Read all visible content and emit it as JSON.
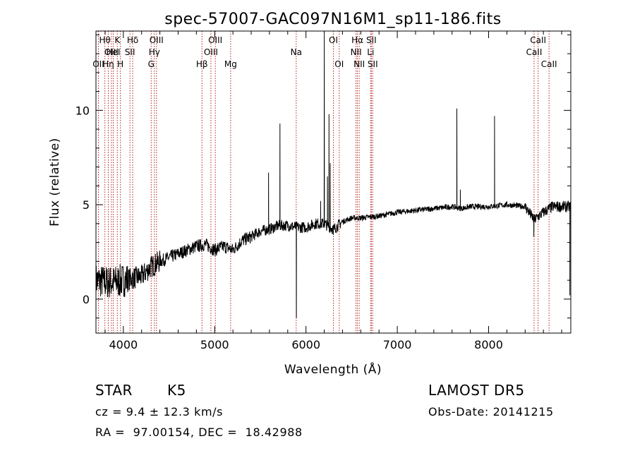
{
  "chart_data": {
    "type": "line",
    "title": "spec-57007-GAC097N16M1_sp11-186.fits",
    "xlabel": "Wavelength (Å)",
    "ylabel": "Flux (relative)",
    "xlim": [
      3700,
      8900
    ],
    "ylim": [
      -1.8,
      14.2
    ],
    "xticks": [
      4000,
      5000,
      6000,
      7000,
      8000
    ],
    "yticks": [
      0,
      5,
      10
    ],
    "grid": false,
    "line_color": "#000000",
    "marker_color": "#b22222",
    "lines": [
      {
        "label": "OII",
        "x": 3727,
        "row": 2
      },
      {
        "label": "Hθ",
        "x": 3798,
        "row": 0
      },
      {
        "label": "Hη",
        "x": 3835,
        "row": 2
      },
      {
        "label": "OIII",
        "x": 3869,
        "row": 1
      },
      {
        "label": "K",
        "x": 3934,
        "row": 0
      },
      {
        "label": "HeI",
        "x": 3889,
        "row": 1
      },
      {
        "label": "H",
        "x": 3968,
        "row": 2
      },
      {
        "label": "SII",
        "x": 4072,
        "row": 1
      },
      {
        "label": "Hδ",
        "x": 4102,
        "row": 0
      },
      {
        "label": "G",
        "x": 4305,
        "row": 2
      },
      {
        "label": "Hγ",
        "x": 4340,
        "row": 1
      },
      {
        "label": "OIII",
        "x": 4363,
        "row": 0
      },
      {
        "label": "Hβ",
        "x": 4861,
        "row": 2
      },
      {
        "label": "OIII",
        "x": 4959,
        "row": 1
      },
      {
        "label": "OIII",
        "x": 5007,
        "row": 0
      },
      {
        "label": "Mg",
        "x": 5175,
        "row": 2
      },
      {
        "label": "Na",
        "x": 5893,
        "row": 1
      },
      {
        "label": "OI",
        "x": 6300,
        "row": 0
      },
      {
        "label": "OI",
        "x": 6364,
        "row": 2
      },
      {
        "label": "NII",
        "x": 6548,
        "row": 1
      },
      {
        "label": "Hα",
        "x": 6563,
        "row": 0
      },
      {
        "label": "NII",
        "x": 6583,
        "row": 2
      },
      {
        "label": "Li",
        "x": 6708,
        "row": 1
      },
      {
        "label": "SII",
        "x": 6716,
        "row": 0
      },
      {
        "label": "SII",
        "x": 6731,
        "row": 2
      },
      {
        "label": "CaII",
        "x": 8498,
        "row": 1
      },
      {
        "label": "CaII",
        "x": 8542,
        "row": 0
      },
      {
        "label": "CaII",
        "x": 8662,
        "row": 2
      }
    ],
    "continuum": [
      [
        3700,
        1.0
      ],
      [
        3800,
        0.9
      ],
      [
        3900,
        0.9
      ],
      [
        4000,
        1.0
      ],
      [
        4100,
        1.1
      ],
      [
        4200,
        1.2
      ],
      [
        4300,
        1.7
      ],
      [
        4400,
        2.0
      ],
      [
        4500,
        2.2
      ],
      [
        4600,
        2.4
      ],
      [
        4700,
        2.6
      ],
      [
        4800,
        2.8
      ],
      [
        4900,
        2.9
      ],
      [
        5000,
        2.6
      ],
      [
        5100,
        2.8
      ],
      [
        5200,
        2.6
      ],
      [
        5300,
        3.1
      ],
      [
        5400,
        3.3
      ],
      [
        5500,
        3.6
      ],
      [
        5600,
        3.7
      ],
      [
        5700,
        3.9
      ],
      [
        5800,
        3.9
      ],
      [
        5900,
        3.8
      ],
      [
        6000,
        3.8
      ],
      [
        6100,
        4.0
      ],
      [
        6200,
        4.0
      ],
      [
        6300,
        3.7
      ],
      [
        6400,
        4.1
      ],
      [
        6500,
        4.3
      ],
      [
        6600,
        4.3
      ],
      [
        6800,
        4.4
      ],
      [
        7000,
        4.6
      ],
      [
        7200,
        4.7
      ],
      [
        7400,
        4.8
      ],
      [
        7600,
        4.9
      ],
      [
        7700,
        4.8
      ],
      [
        7800,
        4.9
      ],
      [
        8000,
        4.9
      ],
      [
        8200,
        5.0
      ],
      [
        8400,
        4.9
      ],
      [
        8500,
        4.2
      ],
      [
        8600,
        4.6
      ],
      [
        8700,
        4.9
      ],
      [
        8850,
        4.9
      ],
      [
        8900,
        4.9
      ]
    ],
    "spikes": [
      [
        5590,
        6.7
      ],
      [
        5715,
        9.3
      ],
      [
        5895,
        -1.0
      ],
      [
        6160,
        5.2
      ],
      [
        6200,
        14.0
      ],
      [
        6235,
        6.5
      ],
      [
        6252,
        9.8
      ],
      [
        6265,
        7.2
      ],
      [
        6300,
        3.4
      ],
      [
        7652,
        10.1
      ],
      [
        7690,
        5.8
      ],
      [
        8065,
        9.7
      ],
      [
        8495,
        3.3
      ],
      [
        8890,
        0.2
      ]
    ],
    "noise": [
      {
        "from": 3700,
        "to": 4050,
        "amp": 0.9
      },
      {
        "from": 4050,
        "to": 4400,
        "amp": 0.6
      },
      {
        "from": 4400,
        "to": 5400,
        "amp": 0.35
      },
      {
        "from": 5400,
        "to": 6400,
        "amp": 0.3
      },
      {
        "from": 6400,
        "to": 8400,
        "amp": 0.15
      },
      {
        "from": 8400,
        "to": 8900,
        "amp": 0.3
      }
    ]
  },
  "info": {
    "object_class": "STAR",
    "subclass": "K5",
    "survey": "LAMOST DR5",
    "redshift": "cz = 9.4 ± 12.3 km/s",
    "obs_date": "Obs-Date: 20141215",
    "coords": "RA =  97.00154, DEC =  18.42988"
  }
}
